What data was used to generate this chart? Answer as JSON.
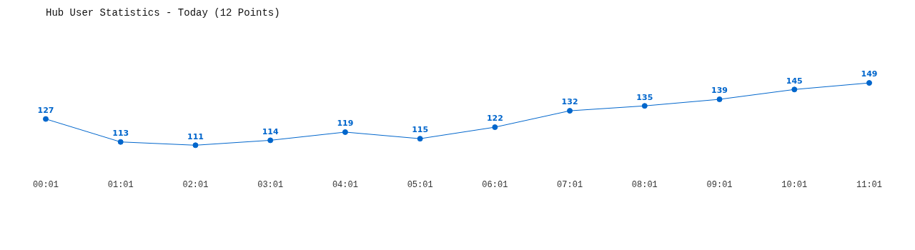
{
  "chart_data": {
    "type": "line",
    "title": "Hub User Statistics - Today (12 Points)",
    "categories": [
      "00:01",
      "01:01",
      "02:01",
      "03:01",
      "04:01",
      "05:01",
      "06:01",
      "07:01",
      "08:01",
      "09:01",
      "10:01",
      "11:01"
    ],
    "series": [
      {
        "color": "#0066cc",
        "values": [
          127,
          113,
          111,
          114,
          119,
          115,
          122,
          132,
          135,
          139,
          145,
          149
        ]
      }
    ],
    "data_labels": true,
    "marker": "circle",
    "line_style": "solid",
    "grid": false,
    "legend": false
  }
}
